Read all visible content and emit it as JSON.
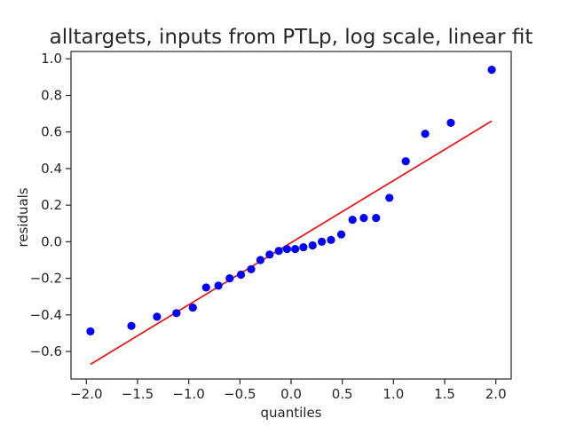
{
  "chart_data": {
    "type": "scatter",
    "title": "alltargets, inputs from PTLp, log scale, linear fit",
    "xlabel": "quantiles",
    "ylabel": "residuals",
    "xlim": [
      -2.15,
      2.15
    ],
    "ylim": [
      -0.75,
      1.04
    ],
    "xticks": [
      -2.0,
      -1.5,
      -1.0,
      -0.5,
      0.0,
      0.5,
      1.0,
      1.5,
      2.0
    ],
    "xtick_labels": [
      "−2.0",
      "−1.5",
      "−1.0",
      "−0.5",
      "0.0",
      "0.5",
      "1.0",
      "1.5",
      "2.0"
    ],
    "yticks": [
      -0.6,
      -0.4,
      -0.2,
      0.0,
      0.2,
      0.4,
      0.6,
      0.8,
      1.0
    ],
    "ytick_labels": [
      "−0.6",
      "−0.4",
      "−0.2",
      "0.0",
      "0.2",
      "0.4",
      "0.6",
      "0.8",
      "1.0"
    ],
    "grid": false,
    "points": {
      "color": "#0000ff",
      "x": [
        -1.96,
        -1.56,
        -1.31,
        -1.12,
        -0.96,
        -0.83,
        -0.71,
        -0.6,
        -0.49,
        -0.39,
        -0.3,
        -0.21,
        -0.12,
        -0.04,
        0.04,
        0.12,
        0.21,
        0.3,
        0.39,
        0.49,
        0.6,
        0.71,
        0.83,
        0.96,
        1.12,
        1.31,
        1.56,
        1.96
      ],
      "y": [
        -0.49,
        -0.46,
        -0.41,
        -0.39,
        -0.36,
        -0.25,
        -0.24,
        -0.2,
        -0.18,
        -0.15,
        -0.1,
        -0.07,
        -0.05,
        -0.04,
        -0.04,
        -0.03,
        -0.02,
        0.0,
        0.01,
        0.04,
        0.12,
        0.13,
        0.13,
        0.24,
        0.44,
        0.59,
        0.65,
        0.94
      ]
    },
    "fit_line": {
      "color": "#ff0000",
      "x": [
        -1.96,
        1.96
      ],
      "y": [
        -0.67,
        0.66
      ]
    }
  }
}
